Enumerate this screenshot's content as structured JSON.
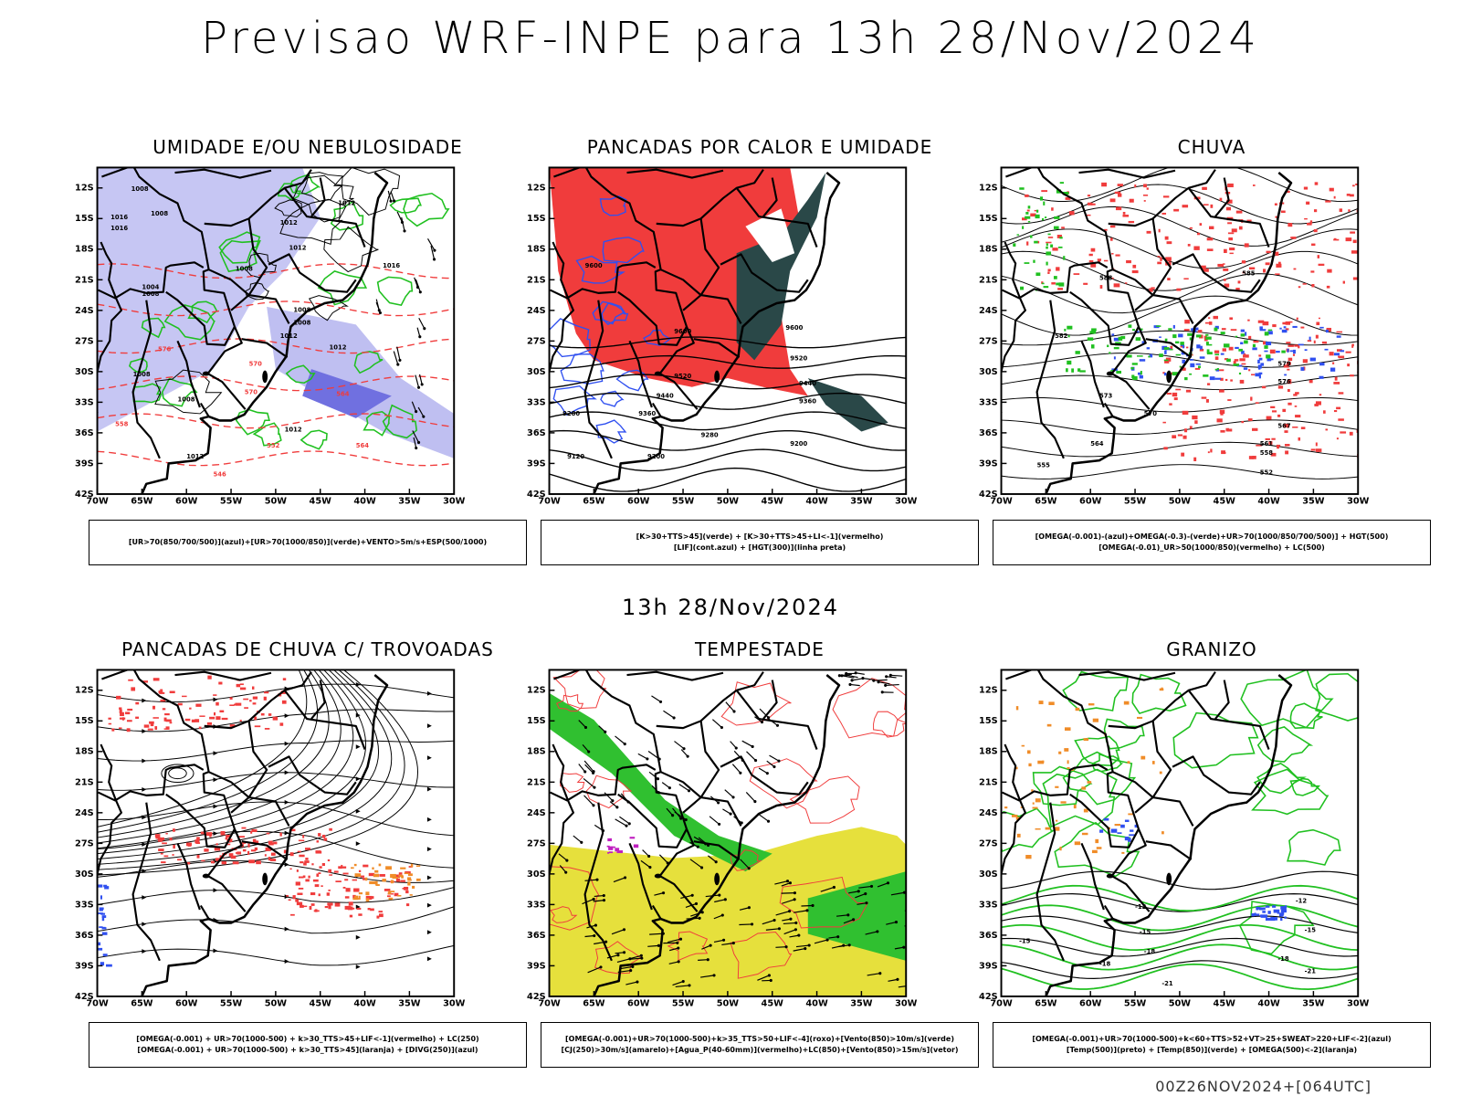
{
  "page": {
    "main_title": "Previsao WRF-INPE  para 13h 28/Nov/2024",
    "mid_title": "13h 28/Nov/2024",
    "footer_stamp": "00Z26NOV2024+[064UTC]"
  },
  "axes": {
    "x_labels": [
      "70W",
      "65W",
      "60W",
      "55W",
      "50W",
      "45W",
      "40W",
      "35W",
      "30W"
    ],
    "y_labels": [
      "12S",
      "15S",
      "18S",
      "21S",
      "24S",
      "27S",
      "30S",
      "33S",
      "36S",
      "39S",
      "42S"
    ]
  },
  "colors": {
    "red": "#f03c3c",
    "blue": "#3050f0",
    "green": "#20c020",
    "lavender": "#b8b8f0",
    "dark_teal": "#2a4848",
    "yellow": "#e6e03c",
    "orange": "#f08c28",
    "magenta": "#c020c0",
    "black": "#000000"
  },
  "panels": [
    {
      "id": "umidade",
      "title": "UMIDADE E/OU NEBULOSIDADE",
      "legend": [
        "[UR>70(850/700/500)](azul)+[UR>70(1000/850)](verde)+VENTO>5m/s+ESP(500/1000)"
      ],
      "contour_labels": [
        "1008",
        "1008",
        "1016",
        "1016",
        "1012",
        "1012",
        "1008",
        "1012",
        "1016",
        "1004",
        "1008",
        "1008",
        "1008",
        "1012",
        "1012",
        "1008",
        "1008",
        "1012",
        "1012",
        "576",
        "570",
        "564",
        "570",
        "558",
        "564",
        "552",
        "546"
      ]
    },
    {
      "id": "pancadas_calor",
      "title": "PANCADAS POR CALOR E UMIDADE",
      "legend": [
        "[K>30+TTS>45](verde) + [K>30+TTS>45+LI<-1](vermelho)",
        "[LIF](cont.azul) + [HGT(300)](linha preta)"
      ],
      "contour_labels": [
        "9600",
        "9600",
        "9600",
        "9520",
        "9520",
        "9440",
        "9440",
        "9360",
        "9360",
        "9280",
        "9280",
        "9200",
        "9200",
        "9120"
      ]
    },
    {
      "id": "chuva",
      "title": "CHUVA",
      "legend": [
        "[OMEGA(-0.001)-(azul)+OMEGA(-0.3)-(verde)+UR>70(1000/850/700/500)] + HGT(500)",
        "[OMEGA(-0.01)_UR>50(1000/850)(vermelho) + LC(500)"
      ],
      "contour_labels": [
        "588",
        "585",
        "582",
        "579",
        "576",
        "573",
        "570",
        "567",
        "564",
        "561",
        "558",
        "555",
        "552"
      ]
    },
    {
      "id": "pancadas_trovoadas",
      "title": "PANCADAS DE CHUVA C/ TROVOADAS",
      "legend": [
        "[OMEGA(-0.001) + UR>70(1000-500) + k>30_TTS>45+LIF<-1](vermelho) + LC(250)",
        "[OMEGA(-0.001) + UR>70(1000-500) + k>30_TTS>45](laranja) + [DIVG(250)](azul)"
      ],
      "contour_labels": []
    },
    {
      "id": "tempestade",
      "title": "TEMPESTADE",
      "legend": [
        "[OMEGA(-0.001)+UR>70(1000-500)+k>35_TTS>50+LIF<-4](roxo)+[Vento(850)>10m/s](verde)",
        "[CJ(250)>30m/s](amarelo)+[Agua_P(40-60mm)](vermelho)+LC(850)+[Vento(850)>15m/s](vetor)"
      ],
      "contour_labels": []
    },
    {
      "id": "granizo",
      "title": "GRANIZO",
      "legend": [
        "[OMEGA(-0.001)+UR>70(1000-500)+k<60+TTS>52+VT>25+SWEAT>220+LIF<-2](azul)",
        "[Temp(500)](preto) + [Temp(850)](verde) + [OMEGA(500)<-2](laranja)"
      ],
      "contour_labels": [
        "-12",
        "-12",
        "-15",
        "-15",
        "-18",
        "-18",
        "-18",
        "-21",
        "-21",
        "-15"
      ]
    }
  ]
}
